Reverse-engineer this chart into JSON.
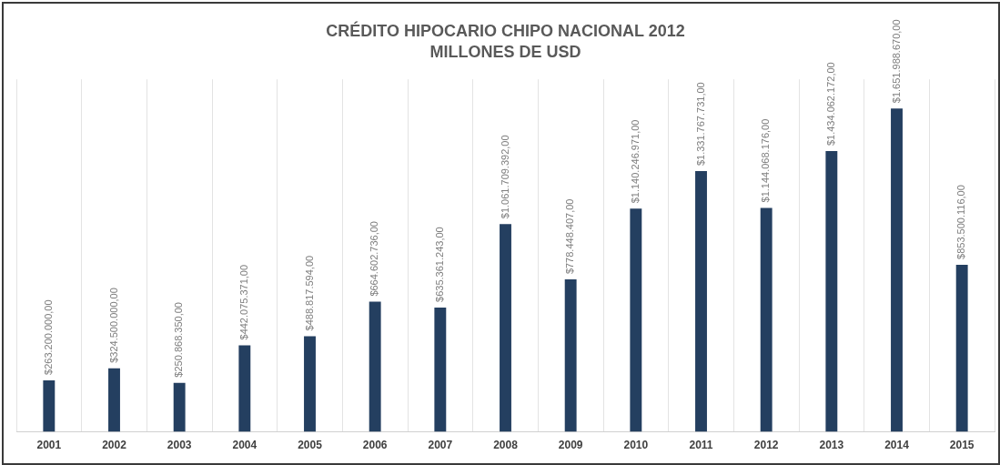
{
  "chart_data": {
    "type": "bar",
    "title": "CRÉDITO HIPOCARIO CHIPO NACIONAL 2012",
    "subtitle": "MILLONES DE USD",
    "categories": [
      "2001",
      "2002",
      "2003",
      "2004",
      "2005",
      "2006",
      "2007",
      "2008",
      "2009",
      "2010",
      "2011",
      "2012",
      "2013",
      "2014",
      "2015"
    ],
    "values": [
      263200000,
      324500000,
      250868350,
      442075371,
      488817594,
      664602736,
      635361243,
      1061709392,
      778448407,
      1140246971,
      1331767731,
      1144068176,
      1434062172,
      1651988670,
      853500116
    ],
    "value_labels": [
      "$263.200.000,00",
      "$324.500.000,00",
      "$250.868.350,00",
      "$442.075.371,00",
      "$488.817.594,00",
      "$664.602.736,00",
      "$635.361.243,00",
      "$1.061.709.392,00",
      "$778.448.407,00",
      "$1.140.246.971,00",
      "$1.331.767.731,00",
      "$1.144.068.176,00",
      "$1.434.062.172,00",
      "$1.651.988.670,00",
      "$853.500.116,00"
    ],
    "color": "#243f60",
    "grid": "x",
    "tick_labels": "x"
  }
}
